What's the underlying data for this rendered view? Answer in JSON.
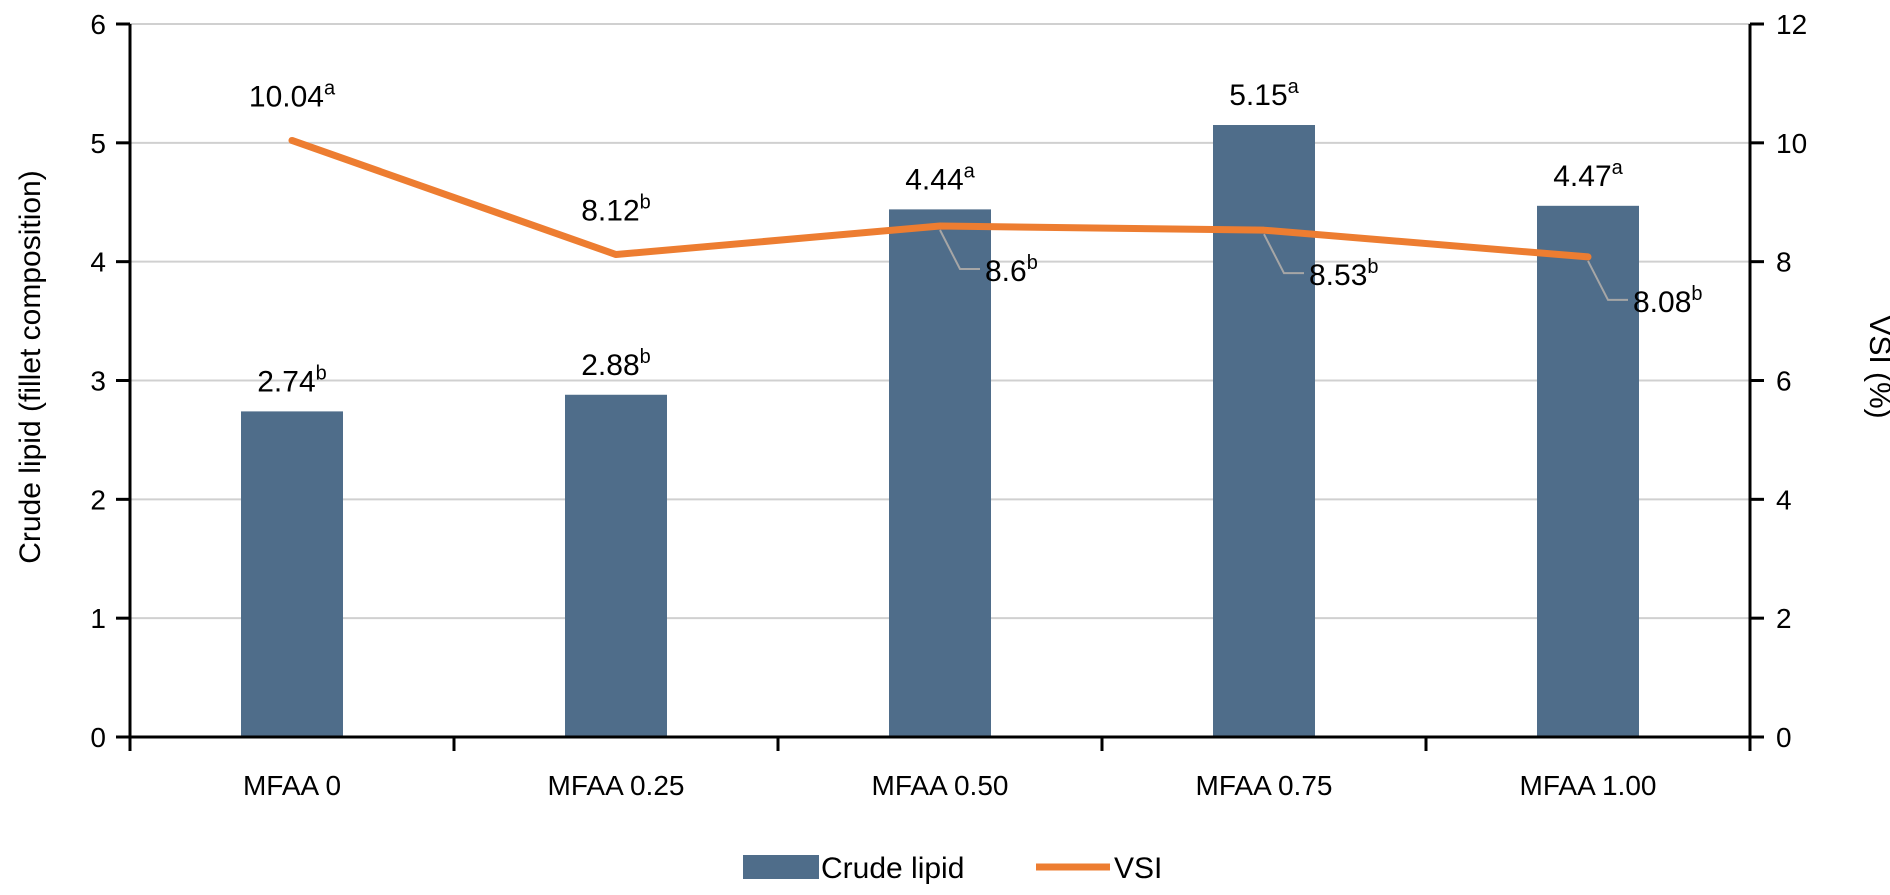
{
  "chart_data": {
    "type": "bar",
    "categories": [
      "MFAA 0",
      "MFAA 0.25",
      "MFAA 0.50",
      "MFAA 0.75",
      "MFAA 1.00"
    ],
    "series": [
      {
        "name": "Crude lipid",
        "kind": "bar",
        "axis": "left",
        "color": "#4f6d8a",
        "values": [
          2.74,
          2.88,
          4.44,
          5.15,
          4.47
        ],
        "labels": [
          {
            "value": "2.74",
            "sup": "b"
          },
          {
            "value": "2.88",
            "sup": "b"
          },
          {
            "value": "4.44",
            "sup": "a"
          },
          {
            "value": "5.15",
            "sup": "a"
          },
          {
            "value": "4.47",
            "sup": "a"
          }
        ]
      },
      {
        "name": "VSI",
        "kind": "line",
        "axis": "right",
        "color": "#ed7d31",
        "values": [
          10.04,
          8.12,
          8.6,
          8.53,
          8.08
        ],
        "labels": [
          {
            "value": "10.04",
            "sup": "a"
          },
          {
            "value": "8.12",
            "sup": "b"
          },
          {
            "value": "8.6",
            "sup": "b"
          },
          {
            "value": "8.53",
            "sup": "b"
          },
          {
            "value": "8.08",
            "sup": "b"
          }
        ]
      }
    ],
    "ylabel_left": "Crude lipid (fillet composition)",
    "ylabel_right": "VSI (%)",
    "ylim_left": [
      0,
      6
    ],
    "ylim_right": [
      0,
      12
    ],
    "yticks_left": [
      "0",
      "1",
      "2",
      "3",
      "4",
      "5",
      "6"
    ],
    "yticks_right": [
      "0",
      "2",
      "4",
      "6",
      "8",
      "10",
      "12"
    ],
    "grid": true,
    "legend_position": "bottom"
  }
}
